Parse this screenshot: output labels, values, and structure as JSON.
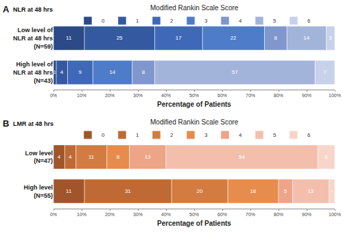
{
  "chart_data": [
    {
      "type": "bar",
      "label": "A",
      "subtitle": "NLR at 48 hrs",
      "title": "Modified Rankin Scale Score",
      "xlabel": "Percentage of Patients",
      "categories": [
        "Low level of NLR at 48 hrs (N=59)",
        "High level of NLR at 48 hrs (N=43)"
      ],
      "series": [
        {
          "name": "0",
          "color": "#2c4a87",
          "values": [
            11,
            1
          ]
        },
        {
          "name": "1",
          "color": "#3559a0",
          "values": [
            25,
            4
          ]
        },
        {
          "name": "2",
          "color": "#3f69b8",
          "values": [
            17,
            9
          ]
        },
        {
          "name": "3",
          "color": "#4e7cc9",
          "values": [
            22,
            14
          ]
        },
        {
          "name": "4",
          "color": "#7f97cc",
          "values": [
            8,
            8
          ]
        },
        {
          "name": "5",
          "color": "#a3b4db",
          "values": [
            14,
            57
          ]
        },
        {
          "name": "6",
          "color": "#c7d2ea",
          "values": [
            3,
            7
          ]
        }
      ],
      "xlim": [
        0,
        100
      ],
      "xticks": [
        {
          "value": 0,
          "label": "0%"
        },
        {
          "value": 10,
          "label": "10%"
        },
        {
          "value": 20,
          "label": "20%"
        },
        {
          "value": 30,
          "label": "30%"
        },
        {
          "value": 40,
          "label": "40%"
        },
        {
          "value": 50,
          "label": "50%"
        },
        {
          "value": 60,
          "label": "60%"
        },
        {
          "value": 70,
          "label": "70%"
        },
        {
          "value": 80,
          "label": "80%"
        },
        {
          "value": 90,
          "label": "90%"
        },
        {
          "value": 100,
          "label": "100%"
        }
      ],
      "orientation": "horizontal",
      "stacked": true,
      "data_labels": true,
      "legend": "top",
      "grid": false
    },
    {
      "type": "bar",
      "label": "B",
      "subtitle": "LMR at 48 hrs",
      "title": "Modified Rankin Scale Score",
      "xlabel": "Percentage of Patients",
      "categories": [
        "Low level (N=47)",
        "High level (N=55)"
      ],
      "series": [
        {
          "name": "0",
          "color": "#a0552a",
          "values": [
            4,
            11
          ]
        },
        {
          "name": "1",
          "color": "#bf6a35",
          "values": [
            4,
            31
          ]
        },
        {
          "name": "2",
          "color": "#d27c42",
          "values": [
            11,
            20
          ]
        },
        {
          "name": "3",
          "color": "#e68c4c",
          "values": [
            8,
            18
          ]
        },
        {
          "name": "4",
          "color": "#eea487",
          "values": [
            13,
            5
          ]
        },
        {
          "name": "5",
          "color": "#f3bfac",
          "values": [
            54,
            13
          ]
        },
        {
          "name": "6",
          "color": "#f7d6c9",
          "values": [
            6,
            2
          ]
        }
      ],
      "xlim": [
        0,
        100
      ],
      "xticks": [
        {
          "value": 0,
          "label": "0%"
        },
        {
          "value": 10,
          "label": "10%"
        },
        {
          "value": 20,
          "label": "20%"
        },
        {
          "value": 30,
          "label": "30%"
        },
        {
          "value": 40,
          "label": "40%"
        },
        {
          "value": 50,
          "label": "50%"
        },
        {
          "value": 60,
          "label": "60%"
        },
        {
          "value": 70,
          "label": "70%"
        },
        {
          "value": 80,
          "label": "80%"
        },
        {
          "value": 90,
          "label": "90%"
        },
        {
          "value": 100,
          "label": "100%"
        }
      ],
      "orientation": "horizontal",
      "stacked": true,
      "data_labels": true,
      "legend": "top",
      "grid": false
    }
  ]
}
